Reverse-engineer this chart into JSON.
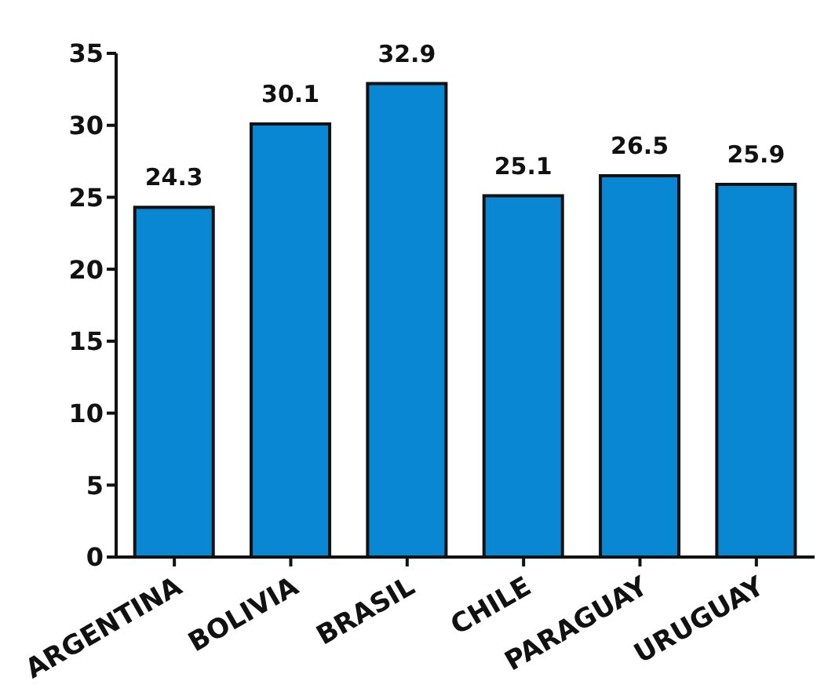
{
  "chart_data": {
    "type": "bar",
    "categories": [
      "ARGENTINA",
      "BOLIVIA",
      "BRASIL",
      "CHILE",
      "PARAGUAY",
      "URUGUAY"
    ],
    "values": [
      24.3,
      30.1,
      32.9,
      25.1,
      26.5,
      25.9
    ],
    "color": "#0a87d2",
    "ylim": [
      0,
      35
    ],
    "yticks": [
      0,
      5,
      10,
      15,
      20,
      25,
      30,
      35
    ],
    "grid": false,
    "data_labels": true
  }
}
